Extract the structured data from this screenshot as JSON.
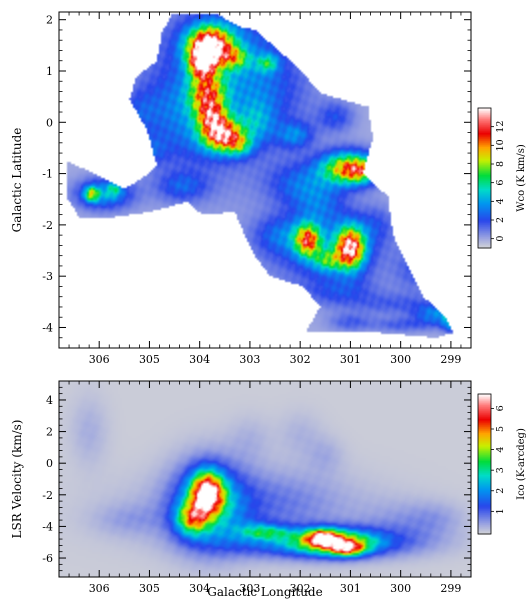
{
  "chart_data": [
    {
      "type": "heatmap",
      "panel": "top",
      "xlabel": "",
      "ylabel": "Galactic Latitude",
      "xlim": [
        306.8,
        298.6
      ],
      "ylim": [
        -4.4,
        2.15
      ],
      "xticks": [
        306,
        305,
        304,
        303,
        302,
        301,
        300,
        299
      ],
      "yticks": [
        2,
        1,
        0,
        -1,
        -2,
        -3,
        -4
      ],
      "colorbar": {
        "label": "Wco (K km/s)",
        "range": [
          -1,
          14
        ],
        "ticks": [
          0,
          2,
          4,
          6,
          8,
          10,
          12
        ]
      },
      "colors": {
        "background": "#ffffff",
        "coverage": "#d9d9d9"
      },
      "coverage": [
        [
          306.65,
          -0.75
        ],
        [
          306.0,
          -1.05
        ],
        [
          305.5,
          -1.3
        ],
        [
          305.15,
          -1.1
        ],
        [
          304.85,
          -0.85
        ],
        [
          305.05,
          -0.15
        ],
        [
          305.4,
          0.45
        ],
        [
          305.25,
          0.9
        ],
        [
          304.85,
          1.2
        ],
        [
          304.75,
          1.75
        ],
        [
          304.55,
          2.1
        ],
        [
          303.65,
          2.1
        ],
        [
          303.15,
          1.85
        ],
        [
          302.9,
          1.8
        ],
        [
          302.25,
          1.25
        ],
        [
          301.55,
          0.55
        ],
        [
          300.65,
          0.3
        ],
        [
          300.55,
          -0.3
        ],
        [
          300.75,
          -1.0
        ],
        [
          300.25,
          -1.45
        ],
        [
          300.15,
          -2.2
        ],
        [
          299.85,
          -2.8
        ],
        [
          299.55,
          -3.4
        ],
        [
          299.1,
          -3.8
        ],
        [
          298.95,
          -4.1
        ],
        [
          299.3,
          -4.2
        ],
        [
          299.85,
          -4.15
        ],
        [
          300.5,
          -4.1
        ],
        [
          301.1,
          -4.1
        ],
        [
          301.9,
          -4.1
        ],
        [
          301.6,
          -3.6
        ],
        [
          301.95,
          -3.2
        ],
        [
          302.6,
          -3.0
        ],
        [
          302.9,
          -2.6
        ],
        [
          303.1,
          -2.2
        ],
        [
          303.3,
          -1.75
        ],
        [
          303.95,
          -1.8
        ],
        [
          304.25,
          -1.55
        ],
        [
          305.0,
          -1.75
        ],
        [
          305.7,
          -1.85
        ],
        [
          306.4,
          -1.85
        ],
        [
          306.65,
          -1.45
        ]
      ],
      "sources": [
        {
          "l": 303.7,
          "b": 0.5,
          "sl": 1.05,
          "sb": 1.15,
          "peak": 2.2
        },
        {
          "l": 303.4,
          "b": 1.45,
          "sl": 0.75,
          "sb": 0.5,
          "peak": 1.8
        },
        {
          "l": 304.25,
          "b": -0.15,
          "sl": 0.5,
          "sb": 0.45,
          "peak": 1.2
        },
        {
          "l": 302.7,
          "b": 0.6,
          "sl": 0.6,
          "sb": 0.5,
          "peak": 1.4
        },
        {
          "l": 304.6,
          "b": 0.4,
          "sl": 0.35,
          "sb": 0.4,
          "peak": 1.0
        },
        {
          "l": 303.8,
          "b": 1.5,
          "sl": 0.3,
          "sb": 0.25,
          "peak": 13.0
        },
        {
          "l": 303.95,
          "b": 1.15,
          "sl": 0.18,
          "sb": 0.2,
          "peak": 9.5
        },
        {
          "l": 303.3,
          "b": 1.25,
          "sl": 0.2,
          "sb": 0.15,
          "peak": 4.5
        },
        {
          "l": 302.65,
          "b": 1.15,
          "sl": 0.15,
          "sb": 0.12,
          "peak": 4.0
        },
        {
          "l": 303.85,
          "b": 0.55,
          "sl": 0.25,
          "sb": 0.3,
          "peak": 8.5
        },
        {
          "l": 303.55,
          "b": -0.25,
          "sl": 0.28,
          "sb": 0.22,
          "peak": 11.0
        },
        {
          "l": 303.75,
          "b": 0.1,
          "sl": 0.2,
          "sb": 0.2,
          "peak": 6.0
        },
        {
          "l": 303.2,
          "b": -0.45,
          "sl": 0.18,
          "sb": 0.15,
          "peak": 4.0
        },
        {
          "l": 302.85,
          "b": 0.0,
          "sl": 0.25,
          "sb": 0.3,
          "peak": 2.5
        },
        {
          "l": 302.1,
          "b": -0.25,
          "sl": 0.25,
          "sb": 0.18,
          "peak": 3.0
        },
        {
          "l": 301.3,
          "b": 0.1,
          "sl": 0.25,
          "sb": 0.2,
          "peak": 2.0
        },
        {
          "l": 301.05,
          "b": -0.9,
          "sl": 0.38,
          "sb": 0.22,
          "peak": 9.5
        },
        {
          "l": 300.8,
          "b": -0.95,
          "sl": 0.2,
          "sb": 0.15,
          "peak": 4.0
        },
        {
          "l": 302.0,
          "b": -1.2,
          "sl": 0.45,
          "sb": 0.3,
          "peak": 2.5
        },
        {
          "l": 301.6,
          "b": -1.6,
          "sl": 0.35,
          "sb": 0.3,
          "peak": 2.0
        },
        {
          "l": 301.5,
          "b": -2.45,
          "sl": 0.8,
          "sb": 0.5,
          "peak": 2.8
        },
        {
          "l": 301.85,
          "b": -2.3,
          "sl": 0.18,
          "sb": 0.22,
          "peak": 9.0
        },
        {
          "l": 301.0,
          "b": -2.45,
          "sl": 0.2,
          "sb": 0.28,
          "peak": 12.0
        },
        {
          "l": 301.45,
          "b": -2.7,
          "sl": 0.2,
          "sb": 0.15,
          "peak": 4.5
        },
        {
          "l": 302.4,
          "b": -2.2,
          "sl": 0.35,
          "sb": 0.25,
          "peak": 2.0
        },
        {
          "l": 305.9,
          "b": -1.4,
          "sl": 0.38,
          "sb": 0.2,
          "peak": 4.0
        },
        {
          "l": 306.15,
          "b": -1.4,
          "sl": 0.1,
          "sb": 0.1,
          "peak": 6.0
        },
        {
          "l": 305.7,
          "b": -1.3,
          "sl": 0.1,
          "sb": 0.1,
          "peak": 3.0
        },
        {
          "l": 304.35,
          "b": -1.25,
          "sl": 0.35,
          "sb": 0.2,
          "peak": 2.2
        },
        {
          "l": 305.0,
          "b": -0.55,
          "sl": 0.25,
          "sb": 0.2,
          "peak": 1.8
        },
        {
          "l": 305.2,
          "b": 0.2,
          "sl": 0.25,
          "sb": 0.3,
          "peak": 1.5
        },
        {
          "l": 301.2,
          "b": -3.3,
          "sl": 0.5,
          "sb": 0.2,
          "peak": 1.7
        },
        {
          "l": 300.1,
          "b": -3.55,
          "sl": 0.6,
          "sb": 0.15,
          "peak": 1.4
        },
        {
          "l": 299.3,
          "b": -3.75,
          "sl": 0.3,
          "sb": 0.15,
          "peak": 3.2
        },
        {
          "l": 299.0,
          "b": -3.9,
          "sl": 0.12,
          "sb": 0.12,
          "peak": 4.0
        },
        {
          "l": 300.0,
          "b": -3.95,
          "sl": 0.4,
          "sb": 0.1,
          "peak": 1.5
        },
        {
          "l": 301.0,
          "b": -3.9,
          "sl": 0.3,
          "sb": 0.12,
          "peak": 1.5
        },
        {
          "l": 299.7,
          "b": -2.9,
          "sl": 0.3,
          "sb": 0.3,
          "peak": 1.5
        },
        {
          "l": 300.5,
          "b": -2.0,
          "sl": 0.25,
          "sb": 0.25,
          "peak": 1.4
        }
      ]
    },
    {
      "type": "heatmap",
      "panel": "bottom",
      "xlabel": "Galactic Longitude",
      "ylabel": "LSR Velocity (km/s)",
      "xlim": [
        306.8,
        298.6
      ],
      "ylim": [
        -7.2,
        5.2
      ],
      "xticks": [
        306,
        305,
        304,
        303,
        302,
        301,
        300,
        299
      ],
      "yticks": [
        4,
        2,
        0,
        -2,
        -4,
        -6
      ],
      "colorbar": {
        "label": "Ico (K-arcdeg)",
        "range": [
          -0.1,
          6.7
        ],
        "ticks": [
          1,
          2,
          3,
          4,
          5,
          6
        ]
      },
      "colors": {
        "background": "#dcdcdc"
      },
      "sources": [
        {
          "l": 303.8,
          "v": -2.6,
          "sl": 0.5,
          "sv": 1.8,
          "peak": 2.3
        },
        {
          "l": 303.85,
          "v": -1.9,
          "sl": 0.22,
          "sv": 0.9,
          "peak": 5.5
        },
        {
          "l": 304.15,
          "v": -3.5,
          "sl": 0.22,
          "sv": 0.7,
          "peak": 3.2
        },
        {
          "l": 301.6,
          "v": -5.0,
          "sl": 1.2,
          "sv": 0.65,
          "peak": 2.2
        },
        {
          "l": 301.3,
          "v": -5.05,
          "sl": 0.5,
          "sv": 0.5,
          "peak": 3.5
        },
        {
          "l": 301.55,
          "v": -4.65,
          "sl": 0.22,
          "sv": 0.35,
          "peak": 3.3
        },
        {
          "l": 301.05,
          "v": -5.45,
          "sl": 0.22,
          "sv": 0.3,
          "peak": 3.0
        },
        {
          "l": 302.6,
          "v": -4.4,
          "sl": 0.35,
          "sv": 0.3,
          "peak": 1.4
        },
        {
          "l": 302.9,
          "v": -4.2,
          "sl": 0.3,
          "sv": 0.4,
          "peak": 0.9
        },
        {
          "l": 303.1,
          "v": -3.0,
          "sl": 1.6,
          "sv": 1.6,
          "peak": 0.5
        },
        {
          "l": 300.0,
          "v": -3.8,
          "sl": 0.6,
          "sv": 1.0,
          "peak": 0.4
        },
        {
          "l": 305.4,
          "v": -3.6,
          "sl": 0.5,
          "sv": 0.7,
          "peak": 0.35
        },
        {
          "l": 302.5,
          "v": -2.3,
          "sl": 0.9,
          "sv": 1.4,
          "peak": 0.4
        },
        {
          "l": 299.3,
          "v": -3.5,
          "sl": 0.4,
          "sv": 0.7,
          "peak": 0.35
        },
        {
          "l": 306.2,
          "v": 2.0,
          "sl": 0.25,
          "sv": 1.5,
          "peak": 0.3
        },
        {
          "l": 303.0,
          "v": 1.5,
          "sl": 0.3,
          "sv": 1.0,
          "peak": 0.25
        },
        {
          "l": 302.0,
          "v": 1.8,
          "sl": 0.3,
          "sv": 1.0,
          "peak": 0.25
        },
        {
          "l": 301.5,
          "v": 0.5,
          "sl": 0.25,
          "sv": 0.8,
          "peak": 0.3
        }
      ]
    }
  ]
}
